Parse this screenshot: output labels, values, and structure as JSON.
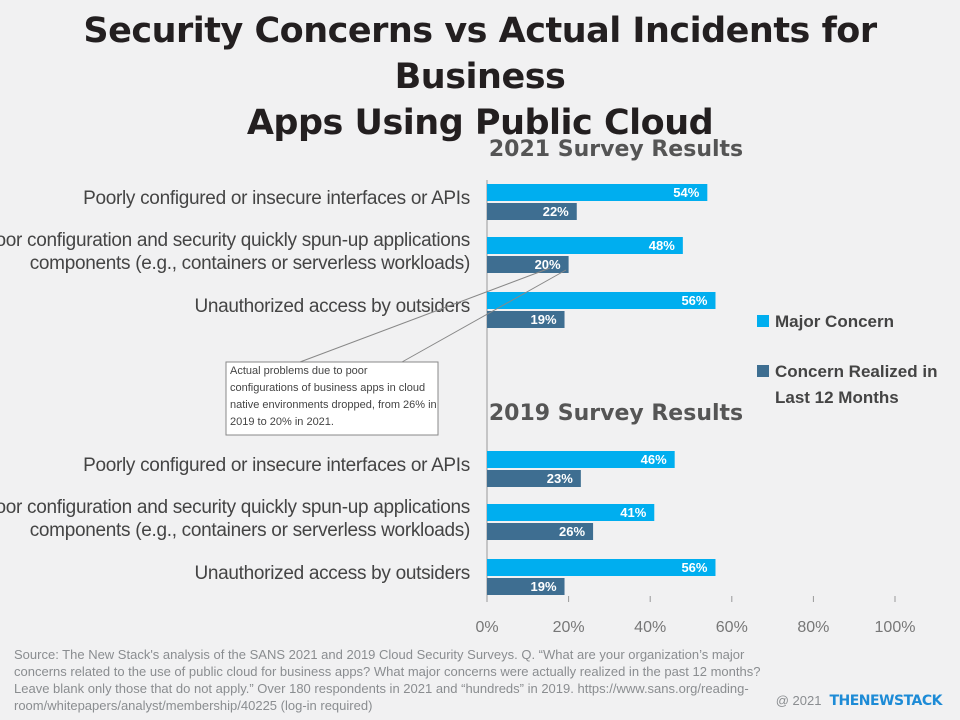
{
  "title": {
    "line1": "Security Concerns vs Actual Incidents for Business",
    "line2": "Apps Using Public Cloud"
  },
  "colors": {
    "major": "#00aeef",
    "realized": "#3e6e91",
    "text": "#333333",
    "axis": "#999999"
  },
  "chart_data": [
    {
      "type": "bar",
      "orientation": "horizontal",
      "title": "2021 Survey Results",
      "categories": [
        [
          "Poorly configured or insecure interfaces or APIs"
        ],
        [
          "Poor configuration and security quickly spun-up applications",
          "components (e.g., containers or serverless workloads)"
        ],
        [
          "Unauthorized access by outsiders"
        ]
      ],
      "series": [
        {
          "name": "Major Concern",
          "values": [
            54,
            48,
            56
          ]
        },
        {
          "name": "Concern Realized in Last 12 Months",
          "values": [
            22,
            20,
            19
          ]
        }
      ],
      "xlim": [
        0,
        100
      ]
    },
    {
      "type": "bar",
      "orientation": "horizontal",
      "title": "2019 Survey Results",
      "categories": [
        [
          "Poorly configured or insecure interfaces or APIs"
        ],
        [
          "Poor configuration and security quickly spun-up applications",
          "components (e.g., containers or serverless workloads)"
        ],
        [
          "Unauthorized access by outsiders"
        ]
      ],
      "series": [
        {
          "name": "Major Concern",
          "values": [
            46,
            41,
            56
          ]
        },
        {
          "name": "Concern Realized in Last 12 Months",
          "values": [
            23,
            26,
            19
          ]
        }
      ],
      "xlim": [
        0,
        100
      ]
    }
  ],
  "x_ticks": [
    "0%",
    "20%",
    "40%",
    "60%",
    "80%",
    "100%"
  ],
  "legend": [
    {
      "lines": [
        "Major Concern"
      ]
    },
    {
      "lines": [
        "Concern Realized in",
        "Last 12 Months"
      ]
    }
  ],
  "annotation": [
    "Actual problems due to poor",
    "configurations of business apps in cloud",
    "native environments dropped, from 26% in",
    "2019 to 20% in 2021."
  ],
  "source": "Source: The New Stack's analysis of the SANS 2021 and 2019 Cloud Security Surveys. Q. “What are your organization’s major concerns related to the use of public cloud for business apps? What major concerns were actually realized in the past 12 months? Leave blank only those that do not apply.” Over 180 respondents in 2021 and “hundreds” in 2019. https://www.sans.org/reading-room/whitepapers/analyst/membership/40225 (log-in required)",
  "footer": {
    "copyright": "@ 2021",
    "brand": "THENEWSTACK"
  }
}
